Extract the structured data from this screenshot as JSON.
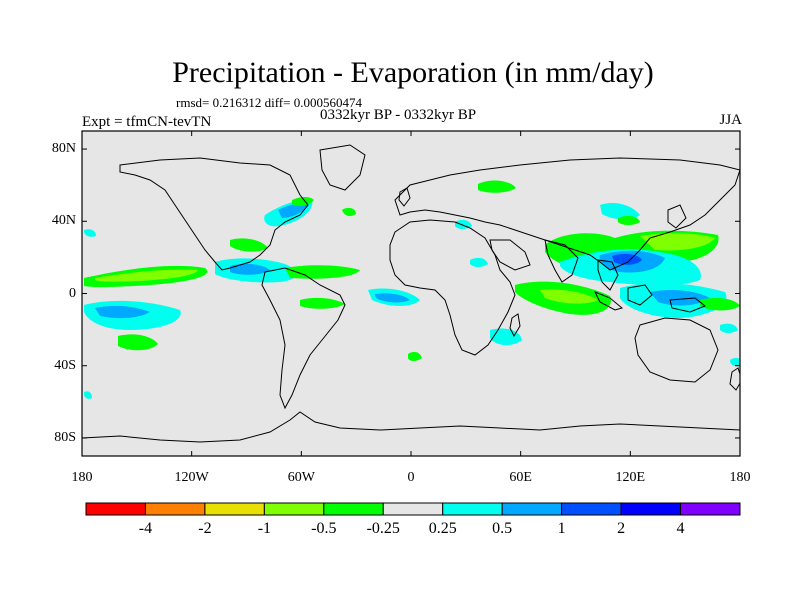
{
  "title": "Precipitation - Evaporation (in mm/day)",
  "stats": "rmsd= 0.216312 diff= 0.000560474",
  "subtitle": "0332kyr BP - 0332kyr BP",
  "experiment": "Expt = tfmCN-tevTN",
  "season": "JJA",
  "chart_data": {
    "type": "heatmap",
    "title": "Precipitation - Evaporation (in mm/day)",
    "projection": "equirectangular",
    "xlim": [
      -180,
      180
    ],
    "ylim": [
      -90,
      90
    ],
    "y_ticks": [
      {
        "value": 80,
        "label": "80N"
      },
      {
        "value": 40,
        "label": "40N"
      },
      {
        "value": 0,
        "label": "0"
      },
      {
        "value": -40,
        "label": "40S"
      },
      {
        "value": -80,
        "label": "80S"
      }
    ],
    "x_ticks": [
      {
        "value": -180,
        "label": "180"
      },
      {
        "value": -120,
        "label": "120W"
      },
      {
        "value": -60,
        "label": "60W"
      },
      {
        "value": 0,
        "label": "0"
      },
      {
        "value": 60,
        "label": "60E"
      },
      {
        "value": 120,
        "label": "120E"
      },
      {
        "value": 180,
        "label": "180"
      }
    ],
    "colorbar": {
      "colors": [
        "#ff0000",
        "#ff8000",
        "#e8e000",
        "#80ff00",
        "#00ff00",
        "#e6e6e6",
        "#00ffee",
        "#00a8ff",
        "#0050ff",
        "#0000ff",
        "#8000ff"
      ],
      "levels": [
        "-4",
        "-2",
        "-1",
        "-0.5",
        "-0.25",
        "0.25",
        "0.5",
        "1",
        "2",
        "4"
      ]
    },
    "background_color": "#e6e6e6"
  }
}
